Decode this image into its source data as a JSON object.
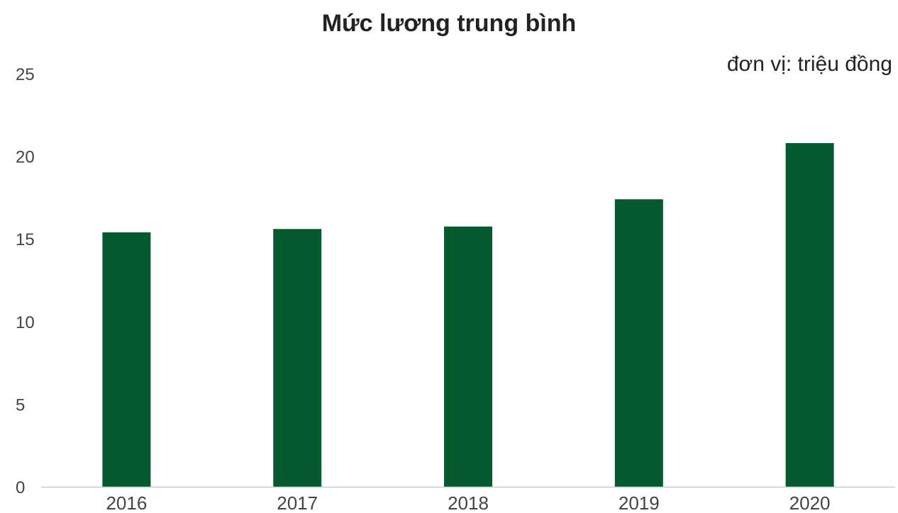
{
  "chart_data": {
    "type": "bar",
    "title": "Mức lương trung bình",
    "unit_note": "đơn vị: triệu đồng",
    "xlabel": "",
    "ylabel": "",
    "categories": [
      "2016",
      "2017",
      "2018",
      "2019",
      "2020"
    ],
    "values": [
      15.4,
      15.6,
      15.75,
      17.4,
      20.8
    ],
    "ylim": [
      0,
      25
    ],
    "yticks": [
      0,
      5,
      10,
      15,
      20,
      25
    ],
    "grid": false,
    "legend": "none",
    "bar_color": "#045a2e",
    "axis_color": "#cccccc"
  }
}
